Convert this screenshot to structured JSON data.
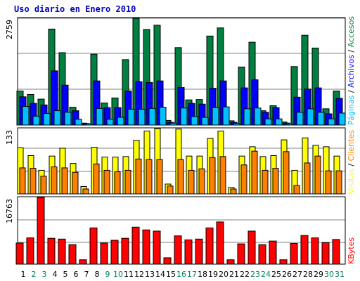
{
  "chart_data": {
    "type": "bar",
    "title": "Uso diario en Enero 2010",
    "categories": [
      "1",
      "2",
      "3",
      "4",
      "5",
      "6",
      "7",
      "8",
      "9",
      "10",
      "11",
      "12",
      "13",
      "14",
      "15",
      "16",
      "17",
      "18",
      "19",
      "20",
      "21",
      "22",
      "23",
      "24",
      "25",
      "26",
      "27",
      "28",
      "29",
      "30",
      "31"
    ],
    "weekend_days": [
      "2",
      "3",
      "9",
      "10",
      "16",
      "17",
      "23",
      "24",
      "30",
      "31"
    ],
    "panels": [
      {
        "id": "top",
        "max_label": "2759",
        "ylim": [
          0,
          2759
        ],
        "legend": [
          {
            "text": "Páginas",
            "color": "#00c0ff"
          },
          {
            "text": " / ",
            "color": "#000000"
          },
          {
            "text": "Archivos",
            "color": "#0000ff"
          },
          {
            "text": " / ",
            "color": "#000000"
          },
          {
            "text": "Accesos",
            "color": "#008040"
          }
        ],
        "series": [
          {
            "name": "Accesos",
            "color": "#008040",
            "values": [
              880,
              790,
              670,
              2480,
              1870,
              460,
              50,
              1830,
              570,
              700,
              1690,
              2770,
              2470,
              2580,
              120,
              2000,
              650,
              660,
              2300,
              2510,
              110,
              1500,
              2140,
              370,
              500,
              80,
              1510,
              2320,
              1990,
              420,
              880
            ]
          },
          {
            "name": "Archivos",
            "color": "#0000ff",
            "values": [
              730,
              560,
              520,
              1400,
              1030,
              370,
              40,
              1140,
              450,
              450,
              880,
              1120,
              1100,
              1140,
              70,
              970,
              560,
              540,
              950,
              1140,
              70,
              960,
              1170,
              330,
              450,
              50,
              720,
              930,
              960,
              290,
              690
            ]
          },
          {
            "name": "Páginas",
            "color": "#00c0ff",
            "values": [
              480,
              230,
              300,
              370,
              330,
              150,
              30,
              430,
              150,
              200,
              410,
              410,
              430,
              460,
              50,
              440,
              220,
              200,
              450,
              470,
              40,
              420,
              440,
              160,
              160,
              30,
              330,
              420,
              330,
              160,
              310
            ]
          }
        ]
      },
      {
        "id": "middle",
        "max_label": "133",
        "ylim": [
          0,
          133
        ],
        "legend": [
          {
            "text": "Visitas",
            "color": "#ffff00"
          },
          {
            "text": " / ",
            "color": "#000000"
          },
          {
            "text": "Clientes",
            "color": "#ff8000"
          }
        ],
        "series": [
          {
            "name": "Visitas",
            "color": "#ffff00",
            "values": [
              94,
              78,
              48,
              77,
              93,
              62,
              15,
              95,
              75,
              75,
              76,
              109,
              128,
              134,
              20,
              132,
              77,
              77,
              113,
              128,
              13,
              77,
              96,
              76,
              78,
              110,
              48,
              114,
              99,
              96,
              77
            ]
          },
          {
            "name": "Clientes",
            "color": "#ff8000",
            "values": [
              53,
              52,
              36,
              55,
              53,
              44,
              10,
              61,
              48,
              45,
              48,
              71,
              70,
              70,
              16,
              70,
              48,
              51,
              74,
              76,
              10,
              59,
              87,
              48,
              52,
              86,
              17,
              63,
              77,
              47,
              47
            ]
          }
        ]
      },
      {
        "id": "bottom",
        "max_label": "16763",
        "ylim": [
          0,
          16763
        ],
        "legend": [
          {
            "text": "KBytes",
            "color": "#ff0000"
          }
        ],
        "series": [
          {
            "name": "KBytes",
            "color": "#ff0000",
            "values": [
              5300,
              6600,
              16800,
              6500,
              6300,
              4900,
              1100,
              9100,
              5300,
              6000,
              6500,
              9300,
              8600,
              8300,
              1600,
              7100,
              6100,
              6300,
              9100,
              10600,
              1100,
              5100,
              8300,
              4900,
              5800,
              1100,
              5200,
              7200,
              6600,
              5400,
              6200
            ]
          }
        ]
      }
    ]
  }
}
